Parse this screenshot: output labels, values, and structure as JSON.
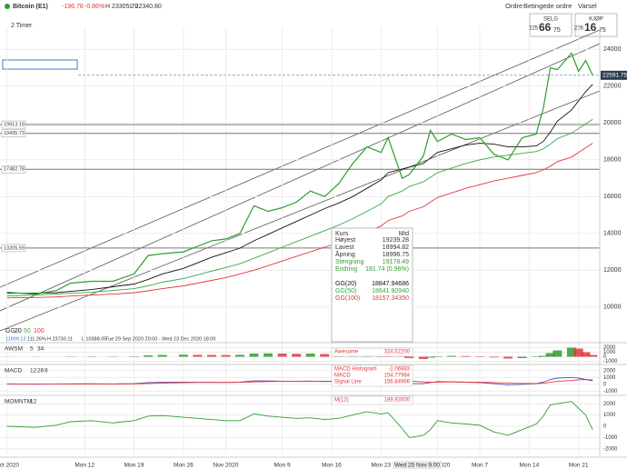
{
  "header": {
    "symbol": "Bitcoin (E1)",
    "change": "-196.78",
    "change_pct": "-0.86%",
    "high": "H 23305.70",
    "low": "L 22340.80",
    "menu": [
      "Ordre",
      "Betingede ordre",
      "Varsel"
    ]
  },
  "quote": {
    "sell": {
      "label": "SELG",
      "big": "225",
      "mid": "66",
      "small": "75"
    },
    "buy": {
      "label": "KJØP",
      "big": "226",
      "mid": "16",
      "small": "75"
    }
  },
  "interval": "2 Timer",
  "legend": {
    "label": "GG",
    "periods": [
      "20",
      "50",
      "100"
    ]
  },
  "stats": [
    "11899.13",
    "111.26%",
    "H 23730.11",
    "L 10388.05",
    "Tue 29 Sep 2020 20:00 - Wed 23 Dec 2020 18:00"
  ],
  "crosshair_date": "Wed 25 Nov 9:00",
  "chart_data": {
    "type": "line",
    "x": [
      "2020-10-01",
      "2020-10-05",
      "2020-10-08",
      "2020-10-10",
      "2020-10-13",
      "2020-10-16",
      "2020-10-19",
      "2020-10-21",
      "2020-10-23",
      "2020-10-26",
      "2020-10-28",
      "2020-10-30",
      "2020-11-01",
      "2020-11-03",
      "2020-11-05",
      "2020-11-07",
      "2020-11-09",
      "2020-11-11",
      "2020-11-13",
      "2020-11-15",
      "2020-11-17",
      "2020-11-19",
      "2020-11-21",
      "2020-11-23",
      "2020-11-24",
      "2020-11-26",
      "2020-11-27",
      "2020-11-29",
      "2020-11-30",
      "2020-12-01",
      "2020-12-03",
      "2020-12-05",
      "2020-12-07",
      "2020-12-09",
      "2020-12-11",
      "2020-12-13",
      "2020-12-15",
      "2020-12-16",
      "2020-12-17",
      "2020-12-18",
      "2020-12-20",
      "2020-12-21",
      "2020-12-22",
      "2020-12-23"
    ],
    "series": [
      {
        "name": "Kurs",
        "color": "#2e9e2e",
        "values": [
          10800,
          10700,
          10900,
          11300,
          11400,
          11400,
          11800,
          12800,
          12900,
          13000,
          13300,
          13600,
          13700,
          14000,
          15500,
          15200,
          15400,
          15700,
          16300,
          16000,
          16700,
          17800,
          18700,
          18400,
          19200,
          17000,
          17200,
          18200,
          19600,
          19000,
          19400,
          19100,
          19200,
          18300,
          18000,
          19200,
          19400,
          20800,
          23000,
          22900,
          23800,
          22800,
          23400,
          22600
        ]
      },
      {
        "name": "GG(20)",
        "color": "#111111",
        "values": [
          10750,
          10750,
          10780,
          10850,
          10950,
          11100,
          11250,
          11500,
          11800,
          12100,
          12400,
          12700,
          12950,
          13200,
          13600,
          13950,
          14300,
          14650,
          15000,
          15350,
          15650,
          16000,
          16450,
          16900,
          17300,
          17500,
          17600,
          17800,
          18100,
          18400,
          18600,
          18800,
          18900,
          18850,
          18700,
          18700,
          18750,
          19000,
          19500,
          20100,
          20700,
          21200,
          21700,
          22100
        ]
      },
      {
        "name": "GG(50)",
        "color": "#3aa845",
        "values": [
          10600,
          10650,
          10700,
          10750,
          10800,
          10900,
          11000,
          11150,
          11350,
          11550,
          11750,
          11950,
          12150,
          12350,
          12650,
          12950,
          13250,
          13550,
          13850,
          14150,
          14450,
          14800,
          15200,
          15600,
          16000,
          16300,
          16550,
          16800,
          17050,
          17300,
          17550,
          17800,
          18000,
          18150,
          18250,
          18350,
          18450,
          18600,
          18850,
          19150,
          19450,
          19700,
          19950,
          20200
        ]
      },
      {
        "name": "GG(100)",
        "color": "#e0383e",
        "values": [
          10500,
          10520,
          10550,
          10600,
          10650,
          10700,
          10780,
          10880,
          11000,
          11150,
          11300,
          11450,
          11600,
          11800,
          12000,
          12250,
          12500,
          12750,
          13000,
          13250,
          13500,
          13800,
          14100,
          14400,
          14700,
          14950,
          15200,
          15450,
          15700,
          15950,
          16200,
          16450,
          16650,
          16850,
          17000,
          17150,
          17300,
          17450,
          17650,
          17900,
          18150,
          18400,
          18650,
          18900
        ]
      }
    ],
    "xlim": [
      "2020-09-30",
      "2020-12-24"
    ],
    "xticks": [
      {
        "value": "2020-10-01",
        "label": "Oct 2020"
      },
      {
        "value": "2020-10-12",
        "label": "Mon 12"
      },
      {
        "value": "2020-10-19",
        "label": "Mon 19"
      },
      {
        "value": "2020-10-26",
        "label": "Mon 26"
      },
      {
        "value": "2020-11-01",
        "label": "Nov 2020"
      },
      {
        "value": "2020-11-09",
        "label": "Mon 9"
      },
      {
        "value": "2020-11-16",
        "label": "Mon 16"
      },
      {
        "value": "2020-11-23",
        "label": "Mon 23"
      },
      {
        "value": "2020-12-01",
        "label": "Dec 2020"
      },
      {
        "value": "2020-12-07",
        "label": "Mon 7"
      },
      {
        "value": "2020-12-14",
        "label": "Mon 14"
      },
      {
        "value": "2020-12-21",
        "label": "Mon 21"
      }
    ],
    "ylim": [
      9300,
      25200
    ],
    "yticks": [
      10000,
      12000,
      14000,
      16000,
      18000,
      20000,
      22000,
      24000
    ],
    "grid": true,
    "levels": [
      19913.19,
      19435.73,
      17482.78,
      13205.59
    ],
    "last": 22591.75
  },
  "info": {
    "title": "Kurs",
    "mode": "Mid",
    "rows": [
      {
        "label": "Høyest",
        "value": "19239.28"
      },
      {
        "label": "Lavest",
        "value": "18994.82"
      },
      {
        "label": "Åpning",
        "value": "18996.75"
      },
      {
        "label": "Stengning",
        "value": "19178.49"
      },
      {
        "label": "Endring",
        "value": "181.74 (0.96%)"
      }
    ],
    "averages": [
      "18847.94686",
      "18641.90940",
      "18157.34350"
    ]
  },
  "indicators": [
    {
      "name": "AWSM",
      "params": [
        "5",
        "34"
      ],
      "ylim": [
        -1500,
        2500
      ],
      "yticks": [
        2000,
        1000,
        0,
        -1000
      ],
      "colors": [
        "#2e9e2e",
        "#e0383e"
      ],
      "bars": [
        20,
        -30,
        -10,
        60,
        80,
        60,
        100,
        300,
        400,
        450,
        420,
        400,
        380,
        420,
        700,
        750,
        700,
        650,
        700,
        600,
        700,
        900,
        1100,
        1050,
        1000,
        200,
        -300,
        -500,
        -200,
        100,
        200,
        150,
        100,
        -150,
        -400,
        -300,
        -100,
        200,
        800,
        1400,
        2000,
        1800,
        1000,
        400
      ],
      "lines": [],
      "readout": [
        {
          "label": "Awesome",
          "value": "324.52200"
        }
      ]
    },
    {
      "name": "MACD",
      "params": [
        "12",
        "26",
        "9"
      ],
      "ylim": [
        -1500,
        2500
      ],
      "yticks": [
        2000,
        1000,
        0,
        -1000
      ],
      "colors": [
        "#2e9e2e",
        "#e0383e"
      ],
      "bars": [],
      "lines": [
        {
          "color": "#5b4fb5",
          "values": [
            30,
            10,
            20,
            60,
            70,
            50,
            80,
            250,
            280,
            300,
            280,
            270,
            260,
            300,
            500,
            480,
            450,
            430,
            460,
            400,
            450,
            600,
            750,
            700,
            750,
            300,
            100,
            80,
            250,
            400,
            350,
            300,
            250,
            80,
            -80,
            0,
            100,
            300,
            700,
            900,
            1000,
            900,
            700,
            500
          ]
        },
        {
          "color": "#e0383e",
          "values": [
            20,
            15,
            15,
            30,
            45,
            50,
            60,
            120,
            180,
            230,
            260,
            270,
            270,
            280,
            340,
            400,
            430,
            440,
            450,
            440,
            440,
            480,
            560,
            620,
            660,
            580,
            460,
            340,
            300,
            320,
            330,
            320,
            300,
            250,
            180,
            120,
            110,
            150,
            280,
            420,
            560,
            650,
            680,
            650
          ]
        }
      ],
      "readout": [
        {
          "label": "MACD Histogram",
          "value": "-2.06983"
        },
        {
          "label": "MACD",
          "value": "154.77984"
        },
        {
          "label": "Signal Line",
          "value": "156.84966"
        }
      ]
    },
    {
      "name": "MOMNTM",
      "params": [
        "12"
      ],
      "ylim": [
        -2500,
        2500
      ],
      "yticks": [
        2000,
        1000,
        0,
        -1000,
        -2000
      ],
      "colors": [
        "#2e9e2e",
        "#e0383e"
      ],
      "bars": [],
      "lines": [
        {
          "color": "#2e9e2e",
          "values": [
            0,
            -100,
            100,
            400,
            500,
            300,
            500,
            900,
            950,
            800,
            700,
            600,
            500,
            500,
            1100,
            900,
            800,
            700,
            750,
            600,
            700,
            1000,
            1300,
            1100,
            1200,
            -200,
            -1000,
            -800,
            -300,
            500,
            300,
            200,
            100,
            -500,
            -800,
            -300,
            200,
            900,
            1900,
            2000,
            2200,
            1600,
            1000,
            -300
          ]
        }
      ],
      "readout": [
        {
          "label": "M(12)",
          "value": "189.92000"
        }
      ]
    }
  ]
}
